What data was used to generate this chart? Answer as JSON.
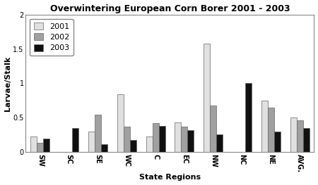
{
  "title": "Overwintering European Corn Borer 2001 - 2003",
  "xlabel": "State Regions",
  "ylabel": "Larvae/Stalk",
  "categories": [
    "SW",
    "SC",
    "SE",
    "WC",
    "C",
    "EC",
    "NW",
    "NC",
    "NE",
    "AVG."
  ],
  "series": {
    "2001": [
      0.22,
      0.0,
      0.3,
      0.84,
      0.22,
      0.43,
      1.58,
      0.0,
      0.75,
      0.5
    ],
    "2002": [
      0.13,
      0.0,
      0.54,
      0.37,
      0.42,
      0.37,
      0.68,
      0.0,
      0.65,
      0.46
    ],
    "2003": [
      0.19,
      0.35,
      0.11,
      0.17,
      0.38,
      0.32,
      0.25,
      1.0,
      0.3,
      0.35
    ]
  },
  "colors": {
    "2001": "#e0e0e0",
    "2002": "#a0a0a0",
    "2003": "#101010"
  },
  "ylim": [
    0,
    2
  ],
  "yticks": [
    0,
    0.5,
    1,
    1.5,
    2
  ],
  "legend_labels": [
    "2001",
    "2002",
    "2003"
  ],
  "bar_width": 0.22,
  "edgecolor": "#666666",
  "background_color": "#ffffff",
  "title_fontsize": 9,
  "axis_label_fontsize": 8,
  "tick_fontsize": 7,
  "legend_fontsize": 8
}
